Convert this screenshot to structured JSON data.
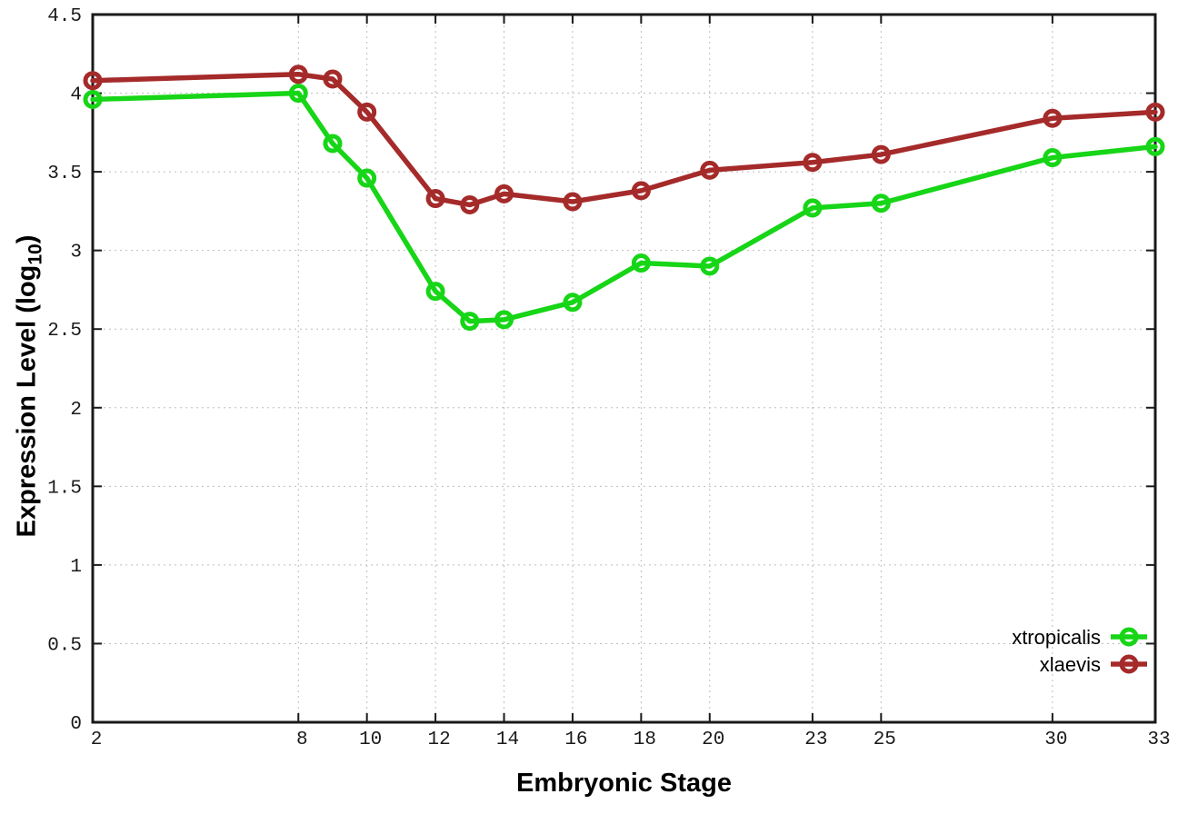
{
  "chart_data": {
    "type": "line",
    "title": "",
    "xlabel": "Embryonic Stage",
    "ylabel": {
      "main": "Expression Level (log",
      "sub": "10",
      "suffix": ")"
    },
    "x": [
      2,
      8,
      9,
      10,
      12,
      13,
      14,
      16,
      18,
      20,
      23,
      25,
      30,
      33
    ],
    "series": [
      {
        "name": "xtropicalis",
        "color": "#17d517",
        "values": [
          3.96,
          4.0,
          3.68,
          3.46,
          2.74,
          2.55,
          2.56,
          2.67,
          2.92,
          2.9,
          3.27,
          3.3,
          3.59,
          3.66
        ]
      },
      {
        "name": "xlaevis",
        "color": "#a52a2a",
        "values": [
          4.08,
          4.12,
          4.09,
          3.88,
          3.33,
          3.29,
          3.36,
          3.31,
          3.38,
          3.51,
          3.56,
          3.61,
          3.84,
          3.88
        ]
      }
    ],
    "xlim": [
      2,
      33
    ],
    "ylim": [
      0,
      4.5
    ],
    "x_ticks": [
      "2",
      "8",
      "10",
      "12",
      "14",
      "16",
      "18",
      "20",
      "23",
      "25",
      "30",
      "33"
    ],
    "y_ticks": [
      "0",
      "0.5",
      "1",
      "1.5",
      "2",
      "2.5",
      "3",
      "3.5",
      "4",
      "4.5"
    ],
    "grid": true,
    "grid_color": "#bdbdbd",
    "legend_position": "bottom-right",
    "marker": "open-circle"
  }
}
